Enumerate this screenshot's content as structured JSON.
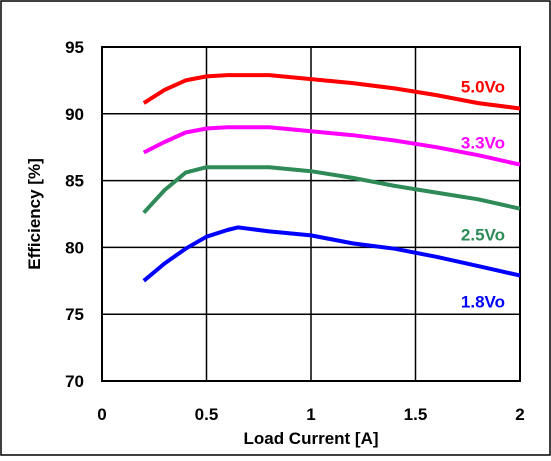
{
  "chart_data": {
    "type": "line",
    "title": "",
    "xlabel": "Load Current [A]",
    "ylabel": "Efficiency [%]",
    "xlim": [
      0,
      2
    ],
    "ylim": [
      70,
      95
    ],
    "x_ticks": [
      "0",
      "0.5",
      "1",
      "1.5",
      "2"
    ],
    "y_ticks": [
      "70",
      "75",
      "80",
      "85",
      "90",
      "95"
    ],
    "grid": true,
    "legend": "inline labels at right",
    "series": [
      {
        "name": "5.0Vo",
        "color": "#ff0000",
        "x": [
          0.2,
          0.3,
          0.4,
          0.5,
          0.6,
          0.8,
          1.0,
          1.2,
          1.4,
          1.6,
          1.8,
          2.0
        ],
        "y": [
          90.8,
          91.8,
          92.5,
          92.8,
          92.9,
          92.9,
          92.6,
          92.3,
          91.9,
          91.4,
          90.8,
          90.4
        ]
      },
      {
        "name": "3.3Vo",
        "color": "#ff00ff",
        "x": [
          0.2,
          0.3,
          0.4,
          0.5,
          0.6,
          0.8,
          1.0,
          1.2,
          1.4,
          1.6,
          1.8,
          2.0
        ],
        "y": [
          87.1,
          87.9,
          88.6,
          88.9,
          89.0,
          89.0,
          88.7,
          88.4,
          88.0,
          87.5,
          86.9,
          86.2
        ]
      },
      {
        "name": "2.5Vo",
        "color": "#2e8b57",
        "x": [
          0.2,
          0.3,
          0.4,
          0.5,
          0.6,
          0.8,
          1.0,
          1.2,
          1.4,
          1.6,
          1.8,
          2.0
        ],
        "y": [
          82.6,
          84.3,
          85.6,
          86.0,
          86.0,
          86.0,
          85.7,
          85.2,
          84.6,
          84.1,
          83.6,
          82.9
        ]
      },
      {
        "name": "1.8Vo",
        "color": "#0000ff",
        "x": [
          0.2,
          0.3,
          0.4,
          0.5,
          0.6,
          0.65,
          0.7,
          0.8,
          1.0,
          1.2,
          1.4,
          1.6,
          1.8,
          2.0
        ],
        "y": [
          77.5,
          78.8,
          79.9,
          80.8,
          81.3,
          81.5,
          81.4,
          81.2,
          80.9,
          80.3,
          79.9,
          79.3,
          78.6,
          77.9
        ]
      }
    ]
  }
}
